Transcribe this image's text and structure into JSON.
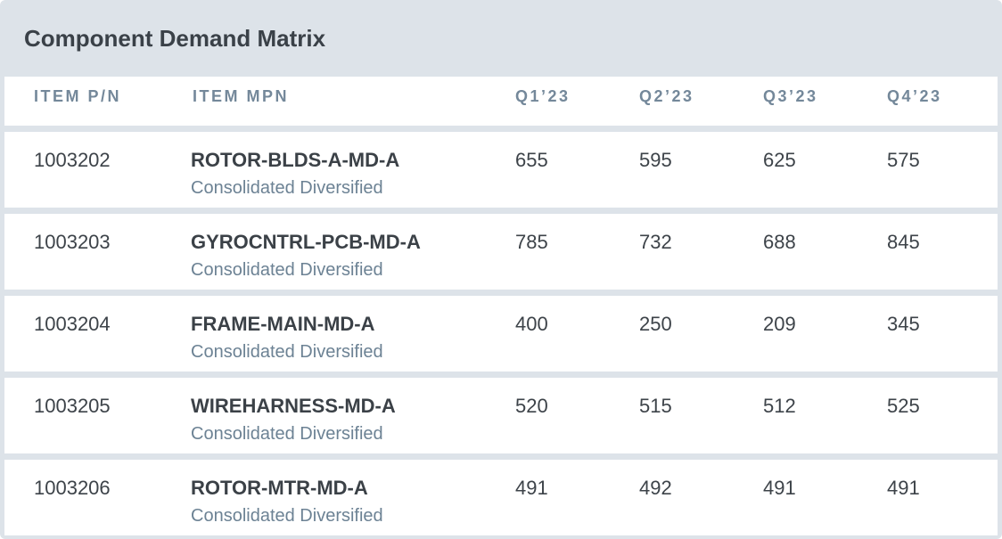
{
  "title": "Component Demand Matrix",
  "columns": {
    "pn": "ITEM P/N",
    "mpn": "ITEM MPN",
    "q1": "Q1’23",
    "q2": "Q2’23",
    "q3": "Q3’23",
    "q4": "Q4’23"
  },
  "rows": [
    {
      "pn": "1003202",
      "mpn": "ROTOR-BLDS-A-MD-A",
      "supplier": "Consolidated Diversified",
      "q1": "655",
      "q2": "595",
      "q3": "625",
      "q4": "575"
    },
    {
      "pn": "1003203",
      "mpn": "GYROCNTRL-PCB-MD-A",
      "supplier": "Consolidated Diversified",
      "q1": "785",
      "q2": "732",
      "q3": "688",
      "q4": "845"
    },
    {
      "pn": "1003204",
      "mpn": "FRAME-MAIN-MD-A",
      "supplier": "Consolidated Diversified",
      "q1": "400",
      "q2": "250",
      "q3": "209",
      "q4": "345"
    },
    {
      "pn": "1003205",
      "mpn": "WIREHARNESS-MD-A",
      "supplier": "Consolidated Diversified",
      "q1": "520",
      "q2": "515",
      "q3": "512",
      "q4": "525"
    },
    {
      "pn": "1003206",
      "mpn": "ROTOR-MTR-MD-A",
      "supplier": "Consolidated Diversified",
      "q1": "491",
      "q2": "492",
      "q3": "491",
      "q4": "491"
    }
  ]
}
